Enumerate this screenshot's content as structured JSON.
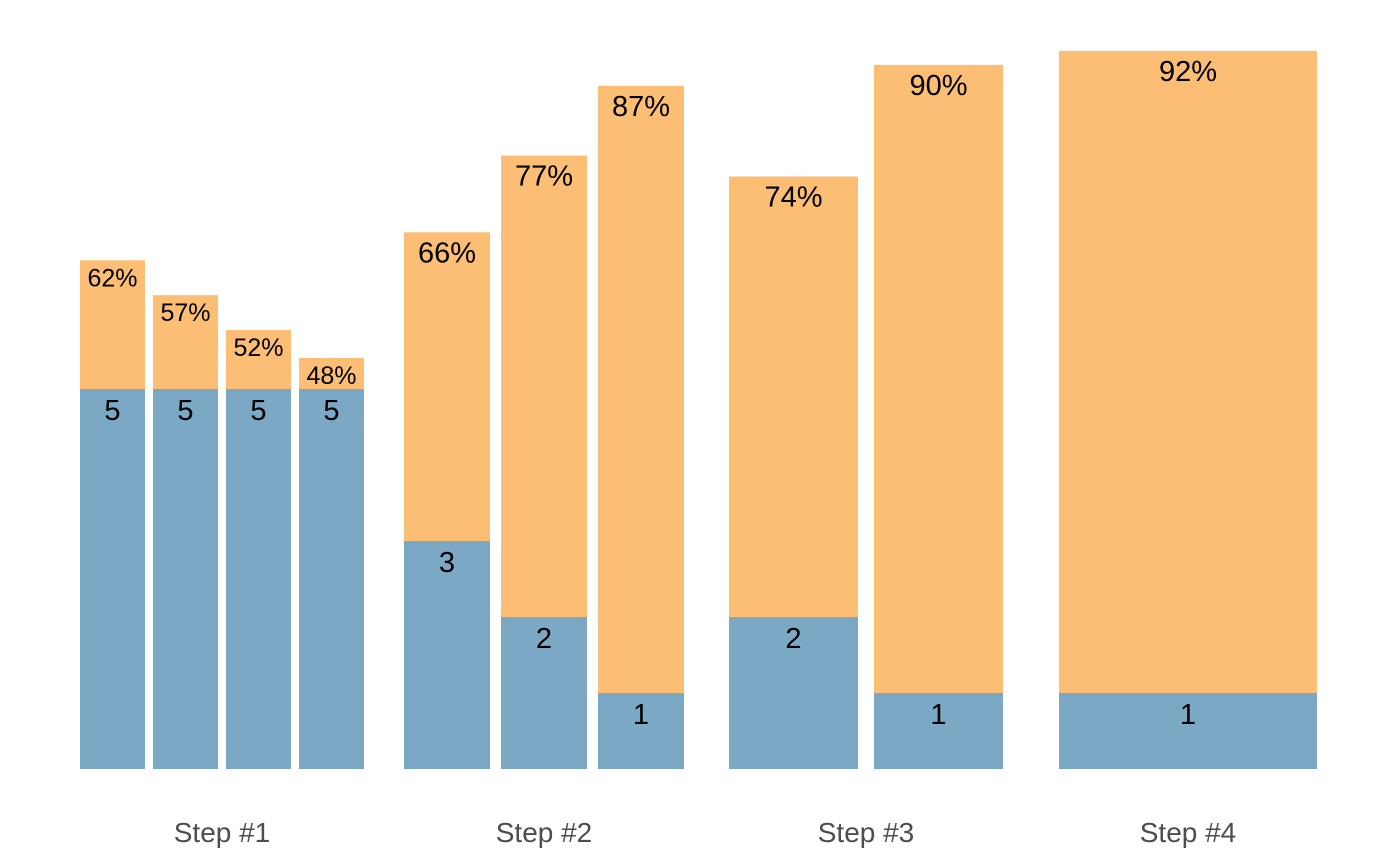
{
  "chart_data": {
    "type": "bar",
    "stacked": true,
    "title": "",
    "xlabel": "",
    "ylabel": "",
    "colors": {
      "count_segment": "#7ba8c4",
      "percent_segment": "#fcbd74",
      "background": "#ffffff"
    },
    "groups": [
      {
        "label": "Step #1",
        "bars": [
          {
            "count": 5,
            "count_label": "5",
            "percent": 62,
            "percent_label": "62%"
          },
          {
            "count": 5,
            "count_label": "5",
            "percent": 57,
            "percent_label": "57%"
          },
          {
            "count": 5,
            "count_label": "5",
            "percent": 52,
            "percent_label": "52%"
          },
          {
            "count": 5,
            "count_label": "5",
            "percent": 48,
            "percent_label": "48%"
          }
        ]
      },
      {
        "label": "Step #2",
        "bars": [
          {
            "count": 3,
            "count_label": "3",
            "percent": 66,
            "percent_label": "66%"
          },
          {
            "count": 2,
            "count_label": "2",
            "percent": 77,
            "percent_label": "77%"
          },
          {
            "count": 1,
            "count_label": "1",
            "percent": 87,
            "percent_label": "87%"
          }
        ]
      },
      {
        "label": "Step #3",
        "bars": [
          {
            "count": 2,
            "count_label": "2",
            "percent": 74,
            "percent_label": "74%"
          },
          {
            "count": 1,
            "count_label": "1",
            "percent": 90,
            "percent_label": "90%"
          }
        ]
      },
      {
        "label": "Step #4",
        "bars": [
          {
            "count": 1,
            "count_label": "1",
            "percent": 92,
            "percent_label": "92%"
          }
        ]
      }
    ]
  }
}
